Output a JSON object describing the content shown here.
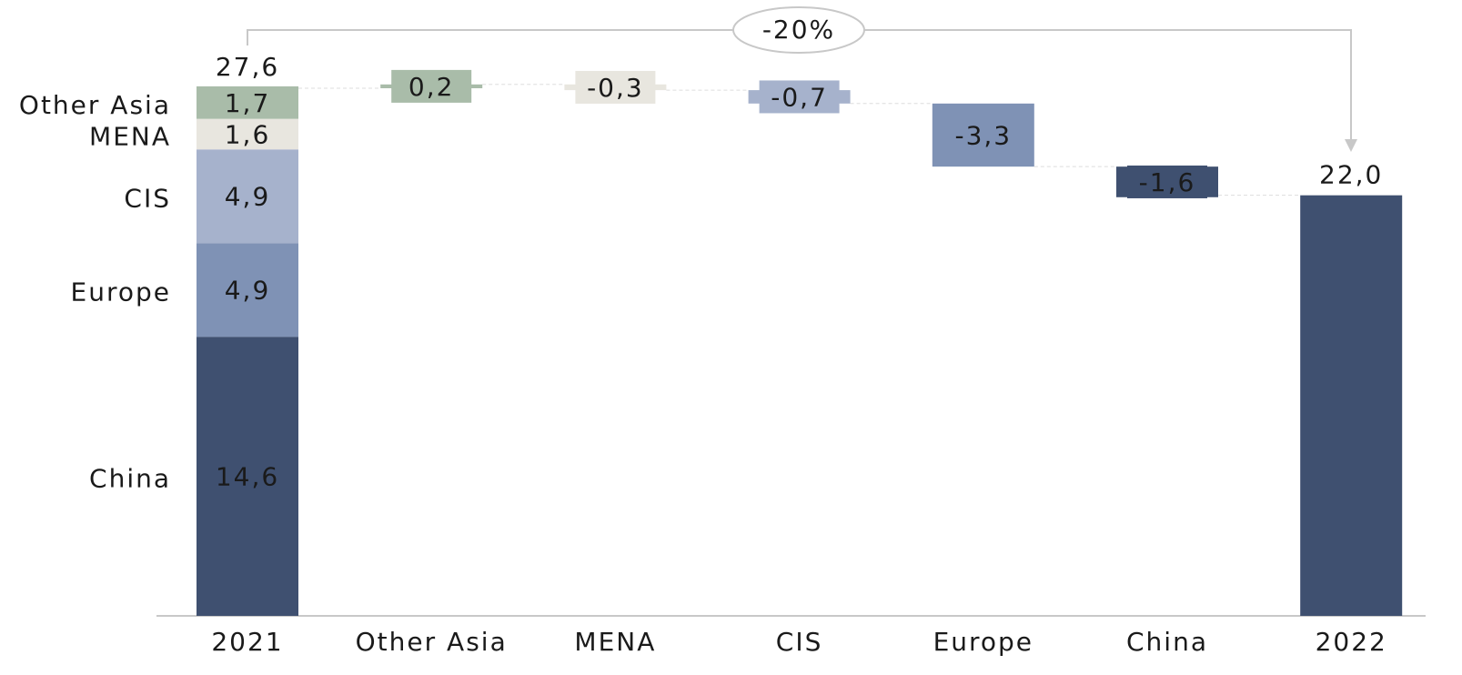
{
  "chart_data": {
    "type": "waterfall",
    "annotation": "-20%",
    "categories": [
      "2021",
      "Other Asia",
      "MENA",
      "CIS",
      "Europe",
      "China",
      "2022"
    ],
    "start_total": 27.6,
    "start_total_label": "27,6",
    "stack": {
      "names": [
        "China",
        "Europe",
        "CIS",
        "MENA",
        "Other Asia"
      ],
      "values": [
        14.6,
        4.9,
        4.9,
        1.6,
        1.7
      ],
      "value_labels": [
        "14,6",
        "4,9",
        "4,9",
        "1,6",
        "1,7"
      ],
      "colors": [
        "#3f5070",
        "#7f92b5",
        "#a6b2cc",
        "#e8e6df",
        "#a9bca9"
      ]
    },
    "changes": {
      "values": [
        0.2,
        -0.3,
        -0.7,
        -3.3,
        -1.6
      ],
      "value_labels": [
        "0,2",
        "-0,3",
        "-0,7",
        "-3,3",
        "-1,6"
      ],
      "colors": [
        "#a9bca9",
        "#e8e6df",
        "#a6b2cc",
        "#7f92b5",
        "#3f5070"
      ]
    },
    "end_total": 22.0,
    "end_total_label": "22,0",
    "end_color": "#3f5070"
  }
}
